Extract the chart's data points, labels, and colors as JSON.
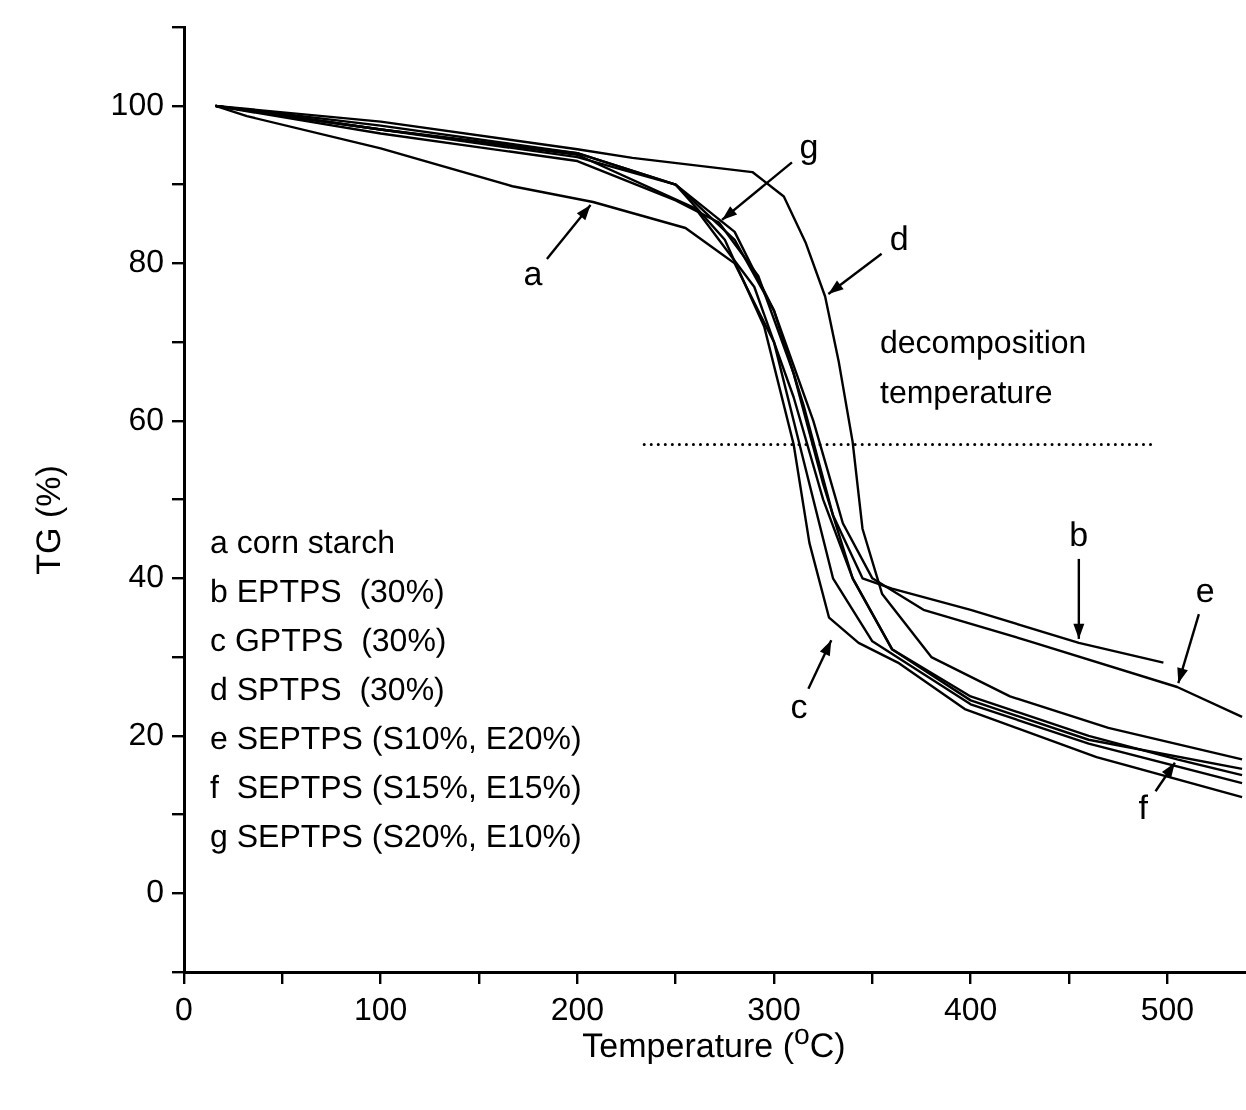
{
  "chart_data": {
    "type": "line",
    "xlabel": "Temperature ($^{o}$C)",
    "ylabel": "TG (%)",
    "xlim": [
      0,
      540
    ],
    "ylim": [
      -10,
      110
    ],
    "xticks": [
      0,
      {
        "value": 50,
        "label": null
      },
      100,
      {
        "value": 150,
        "label": null
      },
      200,
      {
        "value": 250,
        "label": null
      },
      300,
      {
        "value": 350,
        "label": null
      },
      400,
      {
        "value": 450,
        "label": null
      },
      500
    ],
    "yticks": [
      {
        "value": -10,
        "label": null
      },
      0,
      {
        "value": 10,
        "label": null
      },
      20,
      {
        "value": 30,
        "label": null
      },
      40,
      {
        "value": 50,
        "label": null
      },
      60,
      {
        "value": 70,
        "label": null
      },
      80,
      {
        "value": 90,
        "label": null
      },
      100,
      {
        "value": 110,
        "label": null
      }
    ],
    "series": [
      {
        "color": "#000000",
        "x": [
          16,
          32,
          100,
          167,
          208,
          255,
          280,
          300,
          315,
          330,
          350,
          400,
          460,
          538
        ],
        "values": [
          100,
          98.7,
          94.6,
          89.8,
          87.8,
          84.5,
          80,
          70,
          55,
          40,
          32,
          24,
          19,
          14
        ]
      },
      {
        "color": "#000000",
        "x": [
          16,
          100,
          200,
          250,
          280,
          300,
          315,
          330,
          345,
          360,
          400,
          455,
          498
        ],
        "values": [
          100,
          97,
          93.5,
          90,
          84,
          74,
          62,
          48,
          40,
          38.7,
          36,
          31.8,
          29.3
        ]
      },
      {
        "color": "#000000",
        "x": [
          16,
          100,
          200,
          250,
          275,
          295,
          310,
          318,
          328,
          343,
          363,
          397,
          464,
          538
        ],
        "values": [
          100,
          97,
          94,
          90,
          83,
          72,
          57,
          44.5,
          35,
          31.8,
          29.3,
          23.4,
          17.3,
          12.2
        ]
      },
      {
        "color": "#000000",
        "x": [
          16,
          100,
          200,
          228,
          289,
          305,
          316,
          326,
          333,
          340,
          345,
          355,
          380,
          420,
          470,
          538
        ],
        "values": [
          100,
          98,
          94.5,
          93.4,
          91.6,
          88.5,
          82.7,
          75.8,
          67.4,
          57.3,
          46.3,
          38,
          30,
          25,
          21,
          17
        ]
      },
      {
        "color": "#000000",
        "x": [
          16,
          100,
          200,
          250,
          280,
          300,
          320,
          335,
          350,
          376,
          430,
          505,
          538
        ],
        "values": [
          100,
          97.5,
          94,
          90,
          83,
          74,
          60,
          47,
          40,
          36,
          32,
          26.2,
          22.4
        ]
      },
      {
        "color": "#000000",
        "x": [
          16,
          100,
          200,
          260,
          290,
          310,
          325,
          340,
          360,
          400,
          460,
          505,
          538
        ],
        "values": [
          100,
          97,
          93.8,
          87,
          77,
          63,
          50,
          40,
          31,
          25,
          20,
          17,
          15
        ]
      },
      {
        "color": "#000000",
        "x": [
          16,
          100,
          200,
          250,
          272,
          292,
          310,
          325,
          340,
          360,
          400,
          460,
          538
        ],
        "values": [
          100,
          96.5,
          93,
          88,
          85.2,
          78.4,
          66,
          52,
          40,
          31,
          24.5,
          19.5,
          15.8
        ]
      },
      {
        "color": "#000000",
        "line_style": "dotted",
        "x": [
          234,
          495
        ],
        "values": [
          57,
          57
        ]
      }
    ],
    "annotations": [
      "a corn starch",
      "b EPTPS  (30%)",
      "c GPTPS  (30%)",
      "d SPTPS  (30%)",
      "e SEPTPS (S10%, E20%)",
      "f  SEPTPS (S15%, E15%)",
      "g SEPTPS (S20%, E10%)",
      "decomposition temperature",
      {
        "text": "a",
        "x": 208,
        "y": 87.8
      },
      {
        "text": "g",
        "x": 272,
        "y": 85.2
      },
      {
        "text": "d",
        "x": 326,
        "y": 75.8
      },
      {
        "text": "b",
        "x": 455,
        "y": 31.8
      },
      {
        "text": "e",
        "x": 505,
        "y": 26.2
      },
      {
        "text": "f",
        "x": 505,
        "y": 17
      },
      {
        "text": "c",
        "x": 330,
        "y": 32.6
      }
    ]
  }
}
